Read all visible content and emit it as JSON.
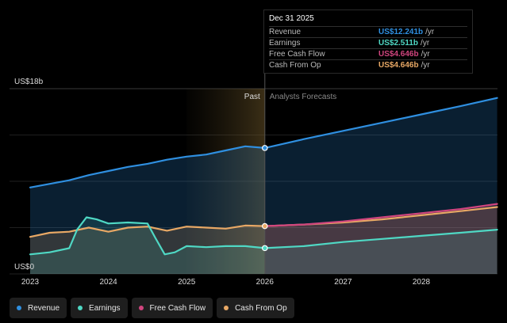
{
  "chart_data": {
    "type": "area",
    "x_unit": "year",
    "x_ticks": [
      "2023",
      "2024",
      "2025",
      "2026",
      "2027",
      "2028"
    ],
    "y_max_label": "US$18b",
    "y_min_label": "US$0",
    "ylim": [
      0,
      18
    ],
    "past_label": "Past",
    "forecast_label": "Analysts Forecasts",
    "past_end": 2026.0,
    "highlight_start": 2025.0,
    "series": [
      {
        "name": "Revenue",
        "color": "#2f8fe0",
        "points": [
          [
            2023.0,
            8.4
          ],
          [
            2023.5,
            9.1
          ],
          [
            2023.75,
            9.6
          ],
          [
            2024.0,
            10.0
          ],
          [
            2024.25,
            10.4
          ],
          [
            2024.5,
            10.7
          ],
          [
            2024.75,
            11.1
          ],
          [
            2025.0,
            11.4
          ],
          [
            2025.25,
            11.6
          ],
          [
            2025.5,
            12.0
          ],
          [
            2025.75,
            12.4
          ],
          [
            2026.0,
            12.24
          ],
          [
            2026.5,
            13.1
          ],
          [
            2027.0,
            13.9
          ],
          [
            2027.5,
            14.7
          ],
          [
            2028.0,
            15.5
          ],
          [
            2028.5,
            16.3
          ],
          [
            2028.97,
            17.1
          ]
        ]
      },
      {
        "name": "Earnings",
        "color": "#4fd8c4",
        "points": [
          [
            2023.0,
            1.9
          ],
          [
            2023.25,
            2.1
          ],
          [
            2023.5,
            2.5
          ],
          [
            2023.6,
            4.3
          ],
          [
            2023.72,
            5.5
          ],
          [
            2023.85,
            5.3
          ],
          [
            2024.0,
            4.9
          ],
          [
            2024.25,
            5.0
          ],
          [
            2024.5,
            4.9
          ],
          [
            2024.6,
            3.5
          ],
          [
            2024.72,
            1.9
          ],
          [
            2024.85,
            2.1
          ],
          [
            2025.0,
            2.7
          ],
          [
            2025.25,
            2.6
          ],
          [
            2025.5,
            2.7
          ],
          [
            2025.75,
            2.7
          ],
          [
            2026.0,
            2.51
          ],
          [
            2026.5,
            2.7
          ],
          [
            2027.0,
            3.1
          ],
          [
            2027.5,
            3.4
          ],
          [
            2028.0,
            3.7
          ],
          [
            2028.5,
            4.0
          ],
          [
            2028.97,
            4.3
          ]
        ]
      },
      {
        "name": "Free Cash Flow",
        "color": "#d0457e",
        "points": [
          [
            2026.0,
            4.646
          ],
          [
            2026.5,
            4.8
          ],
          [
            2027.0,
            5.1
          ],
          [
            2027.5,
            5.5
          ],
          [
            2028.0,
            5.9
          ],
          [
            2028.5,
            6.3
          ],
          [
            2028.97,
            6.8
          ]
        ]
      },
      {
        "name": "Cash From Op",
        "color": "#e8a865",
        "points": [
          [
            2023.0,
            3.6
          ],
          [
            2023.25,
            4.0
          ],
          [
            2023.5,
            4.1
          ],
          [
            2023.75,
            4.5
          ],
          [
            2024.0,
            4.1
          ],
          [
            2024.25,
            4.5
          ],
          [
            2024.5,
            4.6
          ],
          [
            2024.75,
            4.2
          ],
          [
            2025.0,
            4.6
          ],
          [
            2025.25,
            4.5
          ],
          [
            2025.5,
            4.4
          ],
          [
            2025.75,
            4.7
          ],
          [
            2026.0,
            4.646
          ],
          [
            2026.5,
            4.8
          ],
          [
            2027.0,
            5.0
          ],
          [
            2027.5,
            5.3
          ],
          [
            2028.0,
            5.7
          ],
          [
            2028.5,
            6.1
          ],
          [
            2028.97,
            6.5
          ]
        ]
      }
    ]
  },
  "tooltip": {
    "date": "Dec 31 2025",
    "unit": "/yr",
    "rows": [
      {
        "label": "Revenue",
        "value": "US$12.241b",
        "color": "#2f8fe0"
      },
      {
        "label": "Earnings",
        "value": "US$2.511b",
        "color": "#4fd8c4"
      },
      {
        "label": "Free Cash Flow",
        "value": "US$4.646b",
        "color": "#d0457e"
      },
      {
        "label": "Cash From Op",
        "value": "US$4.646b",
        "color": "#e8a865"
      }
    ]
  },
  "legend": [
    {
      "label": "Revenue",
      "color": "#2f8fe0"
    },
    {
      "label": "Earnings",
      "color": "#4fd8c4"
    },
    {
      "label": "Free Cash Flow",
      "color": "#d0457e"
    },
    {
      "label": "Cash From Op",
      "color": "#e8a865"
    }
  ]
}
